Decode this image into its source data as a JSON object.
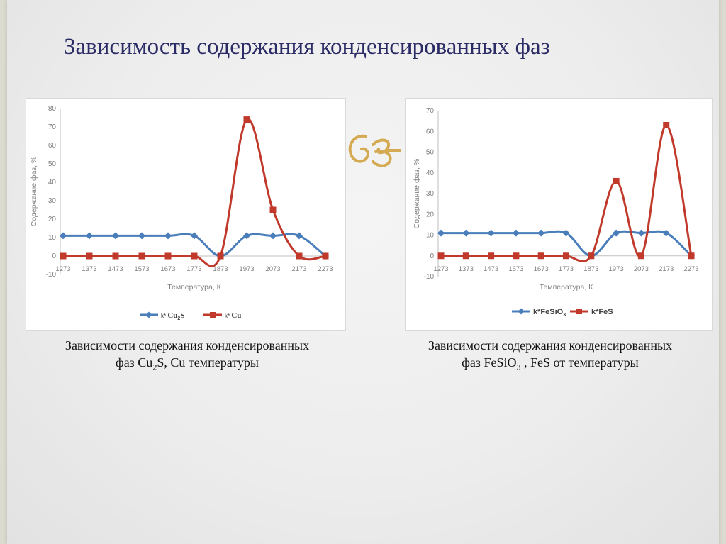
{
  "slide": {
    "title": "Зависимость содержания конденсированных фаз",
    "ornament_icon": "ornate-swash-ornament",
    "colors": {
      "title": "#2b2b66",
      "ornament": "#d4aa52",
      "series_blue": "#4a7ebb",
      "series_red": "#c0392b"
    }
  },
  "captions": {
    "left": {
      "line1": "Зависимости содержания конденсированных",
      "line2_pre": "фаз Cu",
      "line2_sub": "2",
      "line2_post": "S, Cu температуры"
    },
    "right": {
      "line1": "Зависимости содержания конденсированных",
      "line2_pre": "фаз FeSiO",
      "line2_sub": "3",
      "line2_post": " , FeS от температуры"
    }
  },
  "chart_data": [
    {
      "type": "line",
      "xlabel": "Температура, К",
      "ylabel": "Содержание фаз, %",
      "categories": [
        "1273",
        "1373",
        "1473",
        "1573",
        "1673",
        "1773",
        "1873",
        "1973",
        "2073",
        "2173",
        "2273"
      ],
      "ylim": [
        -10,
        80
      ],
      "yticks": [
        -10,
        0,
        10,
        20,
        30,
        40,
        50,
        60,
        70,
        80
      ],
      "grid": false,
      "legend_position": "bottom",
      "series": [
        {
          "name": "k* Cu2S",
          "name_parts": [
            "k* ",
            "Cu",
            "2",
            "S"
          ],
          "marker": "diamond",
          "color": "#4a7ebb",
          "values": [
            11,
            11,
            11,
            11,
            11,
            11,
            0,
            11,
            11,
            11,
            0
          ]
        },
        {
          "name": "k* Cu",
          "name_parts": [
            "k* ",
            "Cu",
            "",
            ""
          ],
          "marker": "square",
          "color": "#c0392b",
          "values": [
            0,
            0,
            0,
            0,
            0,
            0,
            0,
            74,
            25,
            0,
            0
          ]
        }
      ]
    },
    {
      "type": "line",
      "xlabel": "Температура, К",
      "ylabel": "Содержание фаз, %",
      "categories": [
        "1273",
        "1373",
        "1473",
        "1573",
        "1673",
        "1773",
        "1873",
        "1973",
        "2073",
        "2173",
        "2273"
      ],
      "ylim": [
        -10,
        70
      ],
      "yticks": [
        -10,
        0,
        10,
        20,
        30,
        40,
        50,
        60,
        70
      ],
      "grid": false,
      "legend_position": "bottom",
      "series": [
        {
          "name": "k*FeSiO3",
          "name_parts": [
            "k*FeSiO",
            "3",
            ""
          ],
          "marker": "diamond",
          "color": "#4a7ebb",
          "values": [
            11,
            11,
            11,
            11,
            11,
            11,
            0,
            11,
            11,
            11,
            0
          ]
        },
        {
          "name": "k*FeS",
          "name_parts": [
            "k*FeS",
            "",
            ""
          ],
          "marker": "square",
          "color": "#c0392b",
          "values": [
            0,
            0,
            0,
            0,
            0,
            0,
            0,
            36,
            0,
            63,
            0
          ]
        }
      ]
    }
  ]
}
